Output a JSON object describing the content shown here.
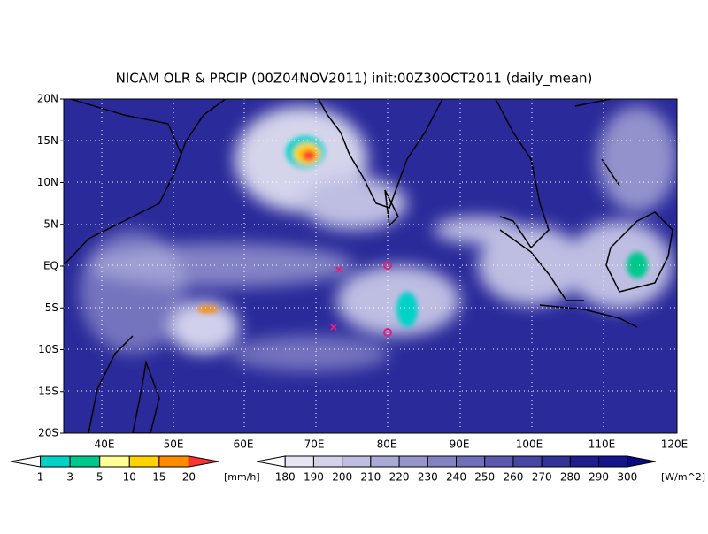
{
  "title": "NICAM OLR & PRCIP (00Z04NOV2011) init:00Z30OCT2011 (daily_mean)",
  "lat_labels": [
    "20N",
    "15N",
    "10N",
    "5N",
    "EQ",
    "5S",
    "10S",
    "15S",
    "20S"
  ],
  "lon_labels": [
    "40E",
    "50E",
    "60E",
    "70E",
    "80E",
    "90E",
    "100E",
    "110E",
    "120E"
  ],
  "precip_legend": {
    "labels": [
      "1",
      "3",
      "5",
      "10",
      "15",
      "20"
    ],
    "unit": "[mm/h]",
    "colors": [
      "#ffffff",
      "#00d2c8",
      "#00c88c",
      "#ffff96",
      "#ffd200",
      "#ff8c00",
      "#ff3232"
    ]
  },
  "olr_legend": {
    "labels": [
      "180",
      "190",
      "200",
      "210",
      "220",
      "230",
      "240",
      "250",
      "260",
      "270",
      "280",
      "290",
      "300"
    ],
    "unit": "[W/m^2]",
    "colors": [
      "#ffffff",
      "#e6e6f5",
      "#d2d2eb",
      "#bebee1",
      "#aaaad7",
      "#9696cd",
      "#8282c3",
      "#6e6eb9",
      "#5a5aaf",
      "#4646a5",
      "#32329b",
      "#1e1e91",
      "#14148c",
      "#0a0a82"
    ]
  }
}
